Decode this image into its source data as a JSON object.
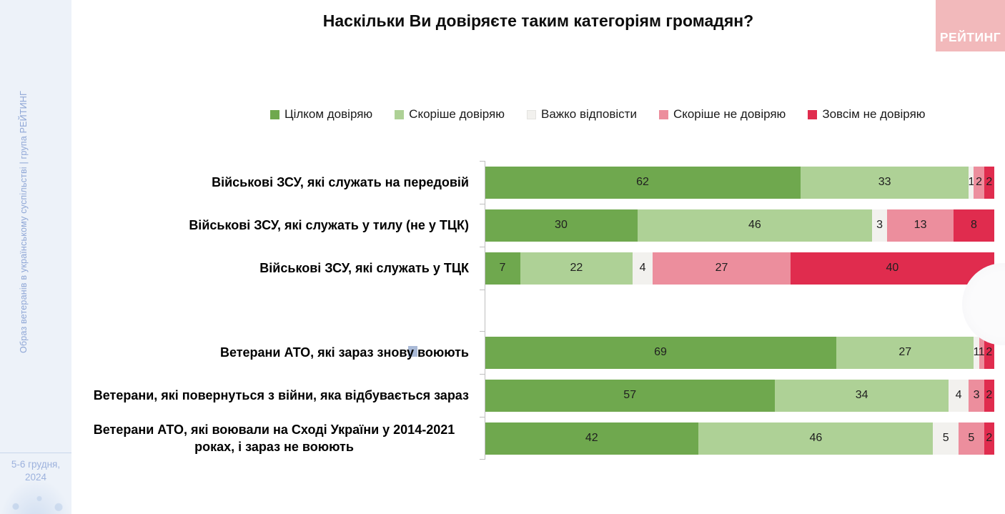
{
  "title": "Наскільки Ви довіряєте таким категоріям громадян?",
  "logo": {
    "text": "РЕЙТИНГ",
    "bg_color": "#f2b9bb",
    "text_color": "#ffffff"
  },
  "sidebar": {
    "vertical_text": "Образ ветеранів в українському суспільстві | група РЕЙТИНГ",
    "date": "5-6 грудня, 2024",
    "bg_color": "#edf2f9",
    "text_color": "#8fa7d6"
  },
  "chart_data": {
    "type": "bar",
    "orientation": "horizontal",
    "stacked": true,
    "unit": "percent",
    "xlim": [
      0,
      100
    ],
    "grid": false,
    "legend_position": "top",
    "gap_after_category_index": 2,
    "title": "Наскільки Ви довіряєте таким категоріям громадян?",
    "categories": [
      "Військові ЗСУ, які служать на передовій",
      "Військові ЗСУ, які служать у тилу (не у ТЦК)",
      "Військові ЗСУ, які служать у ТЦК",
      "Ветерани АТО, які зараз знову воюють",
      "Ветерани, які повернуться з війни, яка відбувається зараз",
      "Ветерани АТО, які воювали на Сході України у 2014-2021 роках, і зараз не воюють"
    ],
    "series": [
      {
        "name": "Цілком довіряю",
        "color": "#6fa84e",
        "values": [
          62,
          30,
          7,
          69,
          57,
          42
        ]
      },
      {
        "name": "Скоріше довіряю",
        "color": "#aed196",
        "values": [
          33,
          46,
          22,
          27,
          34,
          46
        ]
      },
      {
        "name": "Важко відповісти",
        "color": "#f2f1ee",
        "values": [
          1,
          3,
          4,
          1,
          4,
          5
        ]
      },
      {
        "name": "Скоріше не довіряю",
        "color": "#ec8e9d",
        "values": [
          2,
          13,
          27,
          1,
          3,
          5
        ]
      },
      {
        "name": "Зовсім не довіряю",
        "color": "#e02c4e",
        "values": [
          2,
          8,
          40,
          2,
          2,
          2
        ]
      }
    ]
  },
  "decorations": {
    "selection_artifact_category_index": 3
  }
}
